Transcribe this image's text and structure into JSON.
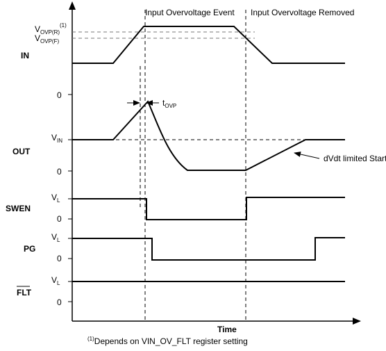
{
  "events": {
    "overvoltage_event": "Input Overvoltage Event",
    "overvoltage_removed": "Input Overvoltage Removed"
  },
  "signals": {
    "in": "IN",
    "out": "OUT",
    "swen": "SWEN",
    "pg": "PG",
    "flt": "FLT"
  },
  "levels": {
    "vovp_r_main": "V",
    "vovp_r_sub": "OVP(R)",
    "vovp_r_note": "(1)",
    "vovp_f_main": "V",
    "vovp_f_sub": "OVP(F)",
    "vin_main": "V",
    "vin_sub": "IN",
    "vl_main": "V",
    "vl_sub": "L",
    "zero": "0"
  },
  "annotations": {
    "tovp_main": "t",
    "tovp_sub": "OVP",
    "dvdt": "dVdt limited Start-up"
  },
  "axis": {
    "time": "Time"
  },
  "footnote": {
    "marker": "(1)",
    "text": "Depends on VIN_OV_FLT register setting"
  }
}
